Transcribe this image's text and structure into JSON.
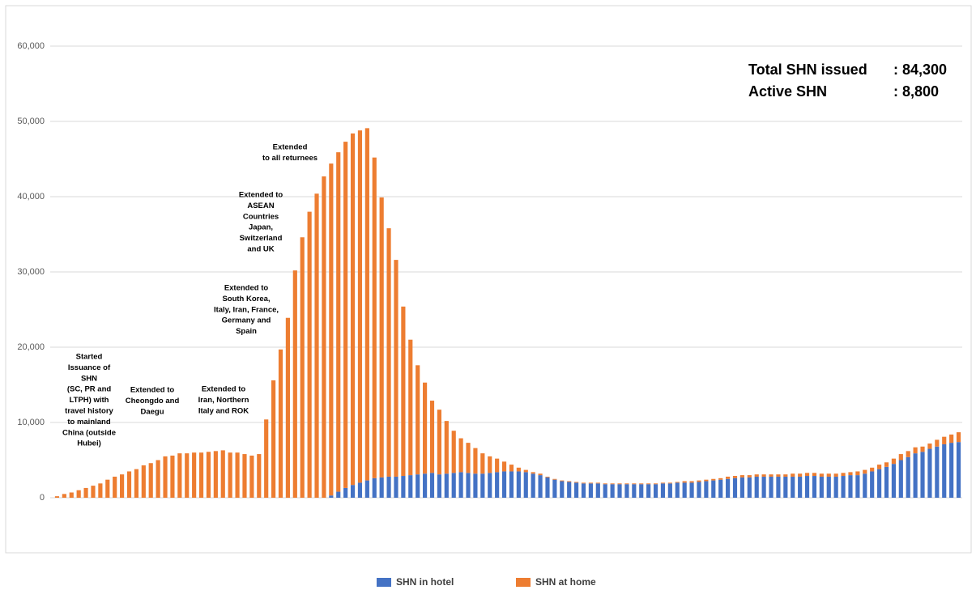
{
  "chart_data": {
    "type": "stacked-bar",
    "categories": [
      null,
      null,
      null,
      null,
      null,
      null,
      null,
      null,
      null,
      null,
      null,
      null,
      null,
      null,
      null,
      null,
      null,
      null,
      null,
      null,
      null,
      null,
      null,
      null,
      null,
      null,
      null,
      null,
      null,
      null,
      null,
      null,
      null,
      null,
      null,
      null,
      null,
      null,
      null,
      null,
      null,
      null,
      null,
      null,
      null,
      null,
      null,
      null,
      null,
      null,
      null,
      null,
      null,
      null,
      null,
      null,
      null,
      null,
      null,
      null,
      null,
      null,
      null,
      null,
      null,
      null,
      null,
      null,
      null,
      null,
      null,
      null,
      null,
      null,
      null,
      null,
      null,
      null,
      null,
      null,
      null,
      null,
      null,
      null,
      null,
      null,
      null,
      null,
      null,
      null,
      null,
      null,
      null,
      null,
      null,
      null,
      null,
      null,
      null,
      null,
      null,
      null,
      null,
      null,
      null,
      null,
      null,
      null,
      null,
      null,
      null,
      null,
      null,
      null,
      null,
      null,
      null,
      null,
      null,
      null,
      null,
      null,
      null,
      null,
      null,
      null
    ],
    "series": [
      {
        "name": "SHN in hotel",
        "color": "#4472c4",
        "values": [
          0,
          0,
          0,
          0,
          0,
          0,
          0,
          0,
          0,
          0,
          0,
          0,
          0,
          0,
          0,
          0,
          0,
          0,
          0,
          0,
          0,
          0,
          0,
          0,
          0,
          0,
          0,
          0,
          0,
          0,
          0,
          0,
          0,
          0,
          0,
          0,
          0,
          0,
          300,
          800,
          1300,
          1700,
          2000,
          2300,
          2600,
          2700,
          2800,
          2800,
          2900,
          3000,
          3100,
          3200,
          3300,
          3100,
          3200,
          3300,
          3400,
          3300,
          3200,
          3200,
          3300,
          3400,
          3500,
          3500,
          3500,
          3400,
          3200,
          3000,
          2700,
          2400,
          2200,
          2100,
          2000,
          1900,
          1900,
          1900,
          1800,
          1800,
          1800,
          1800,
          1800,
          1800,
          1800,
          1800,
          1900,
          1900,
          2000,
          2000,
          2000,
          2100,
          2200,
          2300,
          2400,
          2500,
          2600,
          2700,
          2700,
          2800,
          2800,
          2800,
          2800,
          2800,
          2800,
          2800,
          2900,
          2900,
          2800,
          2800,
          2800,
          2900,
          3000,
          3000,
          3200,
          3500,
          3800,
          4100,
          4500,
          5000,
          5400,
          5900,
          6100,
          6500,
          6800,
          7100,
          7300,
          7400
        ]
      },
      {
        "name": "SHN at home",
        "color": "#ed7d31",
        "values": [
          200,
          500,
          700,
          1000,
          1300,
          1600,
          1900,
          2400,
          2800,
          3100,
          3500,
          3800,
          4300,
          4600,
          5000,
          5500,
          5600,
          5900,
          5900,
          6000,
          6000,
          6100,
          6200,
          6300,
          6000,
          6000,
          5800,
          5600,
          5800,
          10400,
          15600,
          19700,
          23900,
          30200,
          34600,
          38000,
          40400,
          42700,
          44100,
          45100,
          46000,
          46700,
          46800,
          46800,
          42600,
          37200,
          33000,
          28800,
          22500,
          18000,
          14500,
          12100,
          9600,
          8600,
          7000,
          5600,
          4500,
          4000,
          3400,
          2700,
          2200,
          1800,
          1300,
          900,
          500,
          300,
          200,
          200,
          100,
          100,
          100,
          100,
          100,
          100,
          100,
          100,
          100,
          100,
          100,
          100,
          100,
          100,
          100,
          100,
          100,
          100,
          100,
          200,
          200,
          200,
          200,
          200,
          200,
          300,
          300,
          300,
          300,
          300,
          300,
          300,
          300,
          300,
          400,
          400,
          400,
          400,
          400,
          400,
          400,
          400,
          400,
          500,
          500,
          500,
          600,
          600,
          700,
          800,
          800,
          800,
          700,
          700,
          900,
          1000,
          1100,
          1300
        ]
      }
    ],
    "ylim": [
      0,
      60000
    ],
    "yticks": [
      0,
      {
        "value": 10000,
        "label": "10,000"
      },
      {
        "value": 20000,
        "label": "20,000"
      },
      {
        "value": 30000,
        "label": "30,000"
      },
      {
        "value": 40000,
        "label": "40,000"
      },
      {
        "value": 50000,
        "label": "50,000"
      },
      {
        "value": 60000,
        "label": "60,000"
      }
    ],
    "grid": true,
    "legend": "bottom",
    "annotations": [
      {
        "lines": [
          "Started",
          "Issuance of",
          "SHN",
          "(SC, PR and",
          "LTPH) with",
          "travel history",
          "to mainland",
          "China (outside",
          "Hubei)"
        ]
      },
      {
        "lines": [
          "Extended to",
          "Cheongdo and",
          "Daegu"
        ]
      },
      {
        "lines": [
          "Extended to",
          "Iran, Northern",
          "Italy and ROK"
        ]
      },
      {
        "lines": [
          "Extended to",
          "South Korea,",
          "Italy, Iran, France,",
          "Germany and",
          "Spain"
        ]
      },
      {
        "lines": [
          "Extended to",
          "ASEAN",
          "Countries",
          "Japan,",
          "Switzerland",
          "and UK"
        ]
      },
      {
        "lines": [
          "Extended",
          "to all returnees"
        ]
      }
    ],
    "stats": [
      {
        "label": "Total SHN issued",
        "value": ": 84,300"
      },
      {
        "label": "Active SHN",
        "value": ": 8,800"
      }
    ]
  }
}
